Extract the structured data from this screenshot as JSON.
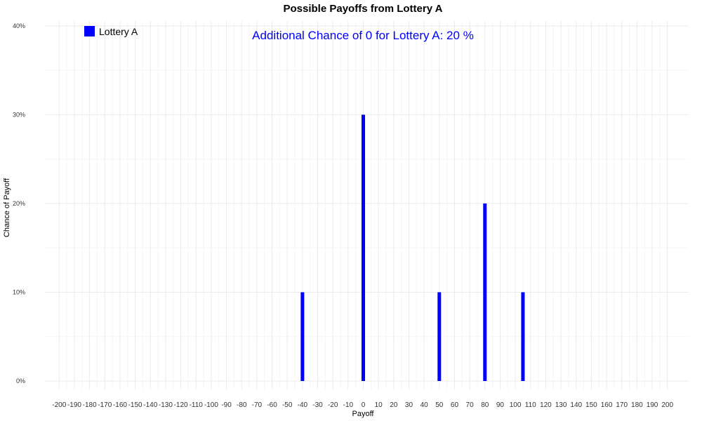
{
  "chart_data": {
    "type": "bar",
    "title": "Possible Payoffs from Lottery A",
    "xlabel": "Payoff",
    "ylabel": "Chance of Payoff",
    "x_ticks": [
      -200,
      -190,
      -180,
      -170,
      -160,
      -150,
      -140,
      -130,
      -120,
      -110,
      -100,
      -90,
      -80,
      -70,
      -60,
      -50,
      -40,
      -30,
      -20,
      -10,
      0,
      10,
      20,
      30,
      40,
      50,
      60,
      70,
      80,
      90,
      100,
      110,
      120,
      130,
      140,
      150,
      160,
      170,
      180,
      190,
      200
    ],
    "y_ticks": [
      {
        "value": 0,
        "label": "0%"
      },
      {
        "value": 10,
        "label": "10%"
      },
      {
        "value": 20,
        "label": "20%"
      },
      {
        "value": 30,
        "label": "30%"
      },
      {
        "value": 40,
        "label": "40%"
      }
    ],
    "xlim": [
      -205,
      205
    ],
    "ylim": [
      0,
      40
    ],
    "grid": true,
    "legend": {
      "position": "top-left",
      "entries": [
        {
          "name": "Lottery A",
          "color": "#0000FF"
        }
      ]
    },
    "series": [
      {
        "name": "Lottery A",
        "color": "#0000FF",
        "x": [
          -40,
          0,
          50,
          80,
          105
        ],
        "values": [
          10,
          30,
          10,
          20,
          10
        ]
      }
    ],
    "annotation": {
      "text": "Additional Chance of 0 for Lottery A:  20 %",
      "color": "#0000FF"
    }
  }
}
